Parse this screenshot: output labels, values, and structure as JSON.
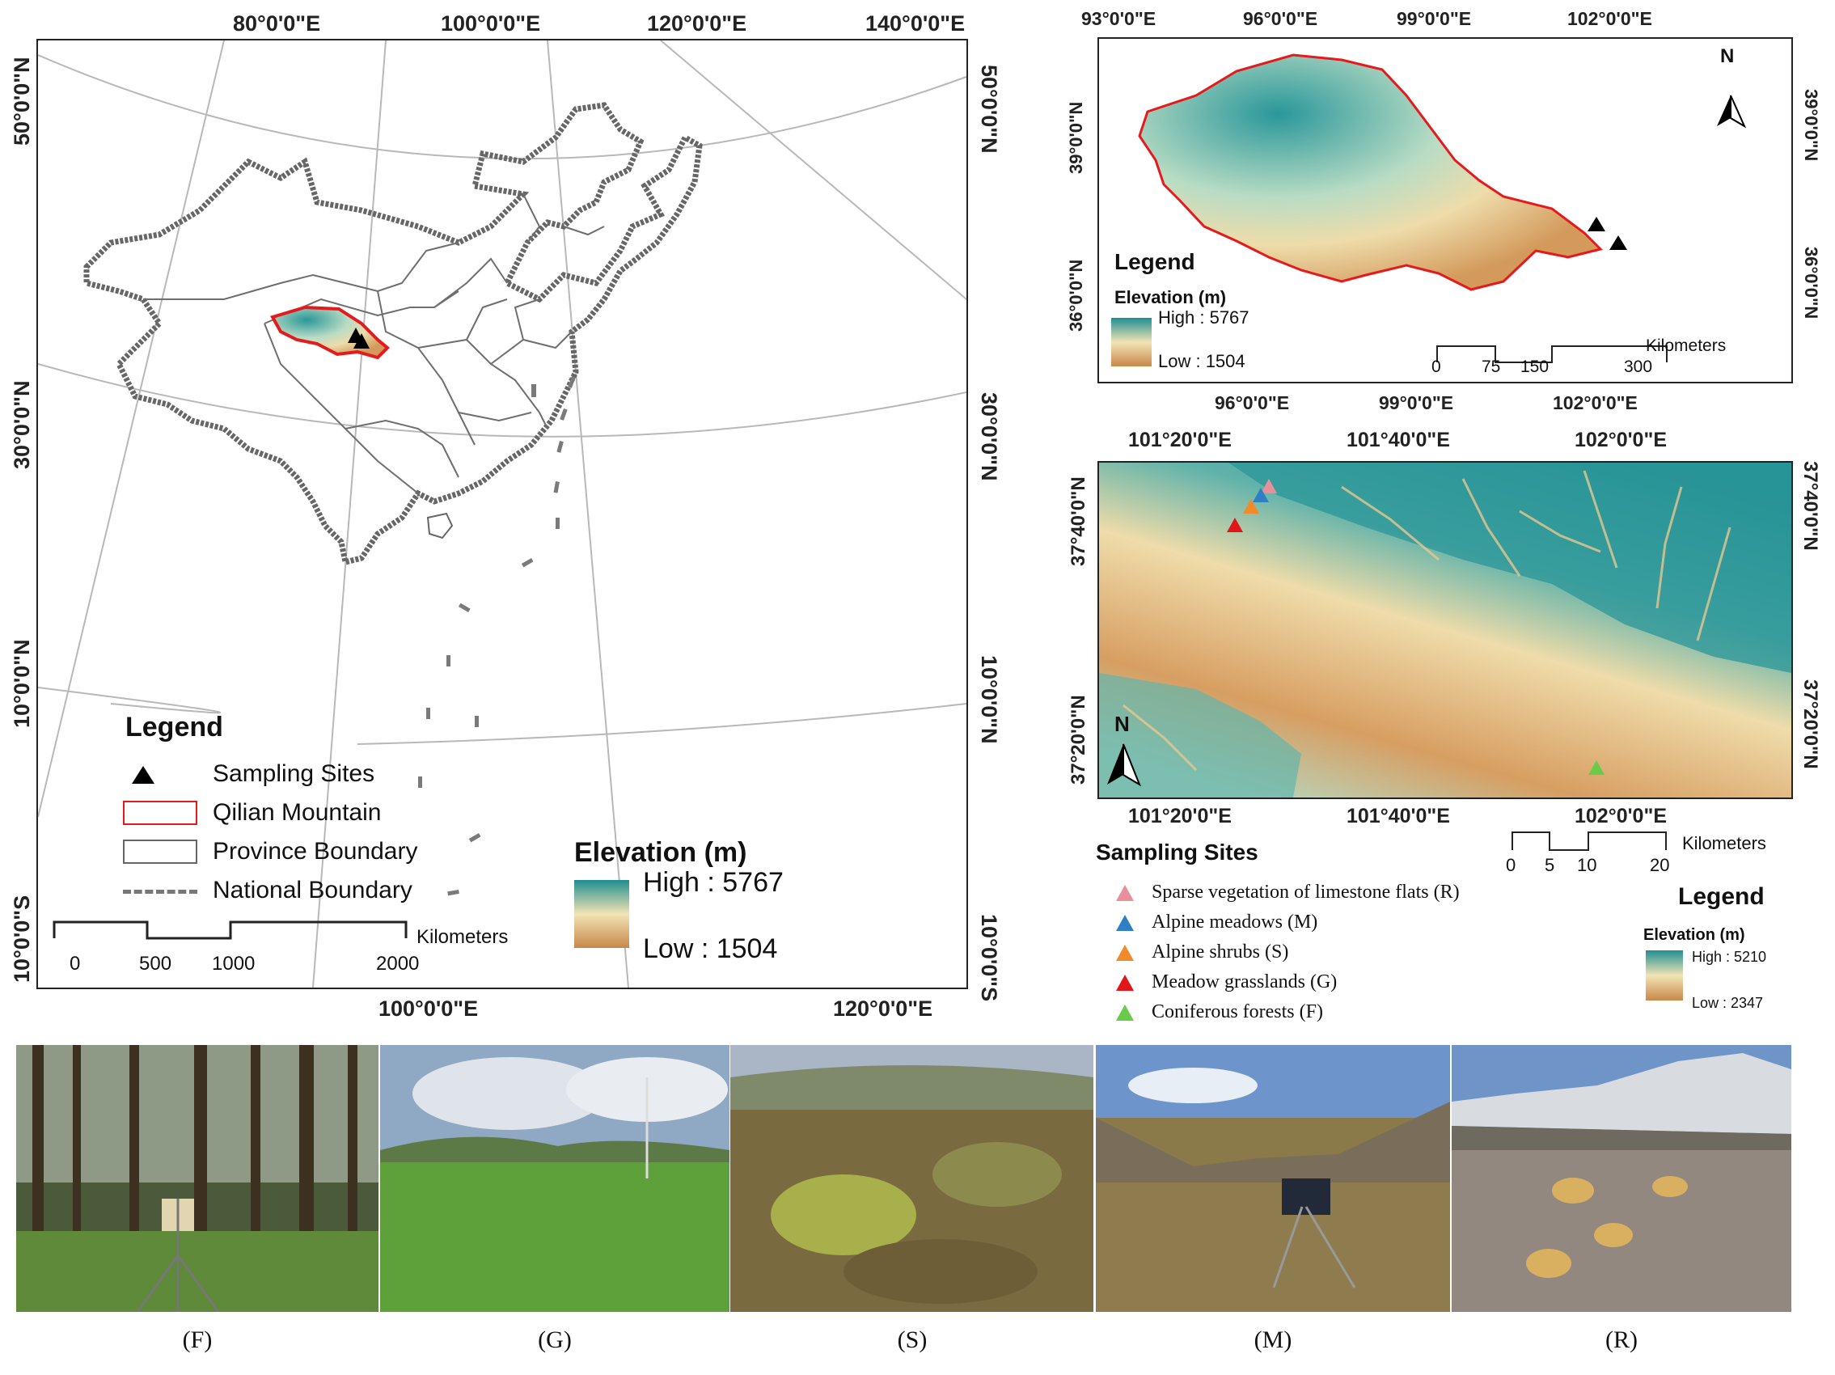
{
  "china_map": {
    "top_labels": [
      "80°0'0\"E",
      "100°0'0\"E",
      "120°0'0\"E",
      "140°0'0\"E"
    ],
    "bottom_labels": [
      "100°0'0\"E",
      "120°0'0\"E"
    ],
    "left_labels": [
      "50°0'0\"N",
      "30°0'0\"N",
      "10°0'0\"N",
      "10°0'0\"S"
    ],
    "right_labels": [
      "50°0'0\"N",
      "30°0'0\"N",
      "10°0'0\"N",
      "10°0'0\"S"
    ],
    "legend": {
      "title": "Legend",
      "items": [
        {
          "symbol": "triangle",
          "label": "Sampling Sites"
        },
        {
          "symbol": "red-box",
          "label": "Qilian Mountain"
        },
        {
          "symbol": "gray-box",
          "label": "Province Boundary"
        },
        {
          "symbol": "dashed-line",
          "label": "National Boundary"
        }
      ],
      "elevation_title": "Elevation (m)",
      "high": "High : 5767",
      "low": "Low : 1504"
    },
    "scale": {
      "unit": "Kilometers",
      "ticks": [
        "0",
        "500",
        "1000",
        "2000"
      ]
    }
  },
  "qilian_map": {
    "top_labels": [
      "93°0'0\"E",
      "96°0'0\"E",
      "99°0'0\"E",
      "102°0'0\"E"
    ],
    "bottom_labels": [
      "96°0'0\"E",
      "99°0'0\"E",
      "102°0'0\"E"
    ],
    "left_labels": [
      "39°0'0\"N",
      "36°0'0\"N"
    ],
    "right_labels": [
      "39°0'0\"N",
      "36°0'0\"N"
    ],
    "north": "N",
    "legend": {
      "title": "Legend",
      "elevation_title": "Elevation (m)",
      "high": "High : 5767",
      "low": "Low : 1504"
    },
    "scale": {
      "unit": "Kilometers",
      "ticks": [
        "0",
        "75",
        "150",
        "300"
      ]
    }
  },
  "detail_map": {
    "top_labels": [
      "101°20'0\"E",
      "101°40'0\"E",
      "102°0'0\"E"
    ],
    "bottom_labels": [
      "101°20'0\"E",
      "101°40'0\"E",
      "102°0'0\"E"
    ],
    "left_labels": [
      "37°40'0\"N",
      "37°20'0\"N"
    ],
    "right_labels": [
      "37°40'0\"N",
      "37°20'0\"N"
    ],
    "north": "N",
    "sites_title": "Sampling Sites",
    "sites": [
      {
        "label": "Sparse vegetation of limestone flats (R)",
        "color": "#e8909a"
      },
      {
        "label": "Alpine meadows (M)",
        "color": "#2f7fc4"
      },
      {
        "label": "Alpine shrubs (S)",
        "color": "#f08a2a"
      },
      {
        "label": "Meadow grasslands (G)",
        "color": "#e0161a"
      },
      {
        "label": "Coniferous forests (F)",
        "color": "#6acb4a"
      }
    ],
    "scale": {
      "unit": "Kilometers",
      "ticks": [
        "0",
        "5",
        "10",
        "20"
      ]
    },
    "legend": {
      "title": "Legend",
      "elevation_title": "Elevation (m)",
      "high": "High : 5210",
      "low": "Low : 2347"
    }
  },
  "photos": [
    {
      "caption": "(F)",
      "scene": "forest"
    },
    {
      "caption": "(G)",
      "scene": "grassland"
    },
    {
      "caption": "(S)",
      "scene": "shrubs"
    },
    {
      "caption": "(M)",
      "scene": "meadow"
    },
    {
      "caption": "(R)",
      "scene": "limestone"
    }
  ],
  "colors": {
    "elev_high": "#1f8e92",
    "elev_mid": "#f2e4b4",
    "elev_low": "#c8874a",
    "qilian_outline": "#e41a1c"
  }
}
